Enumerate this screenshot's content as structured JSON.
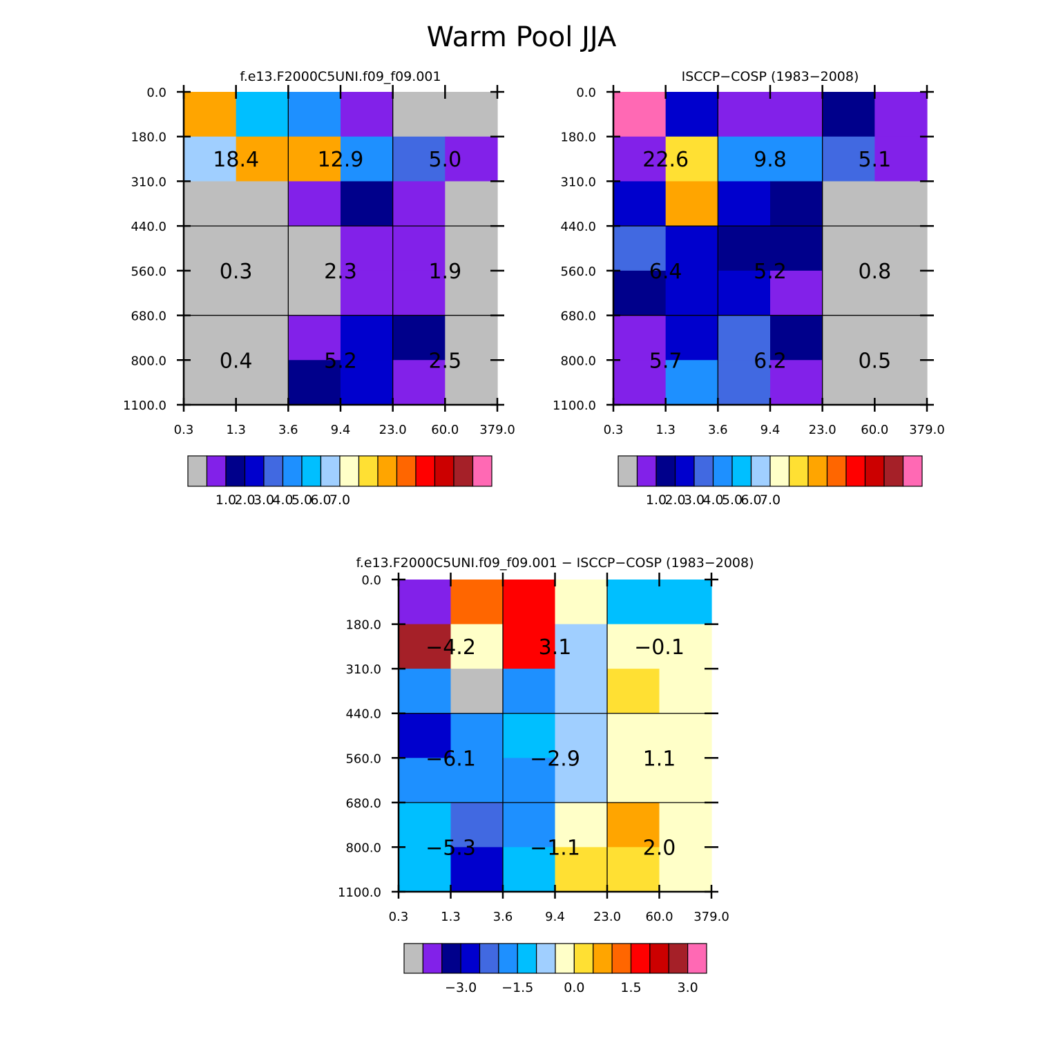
{
  "page_title": "Warm Pool JJA",
  "palette": {
    "gray": "#bebebe",
    "violet": "#8221e9",
    "navy": "#00008b",
    "blue": "#0000cd",
    "royal": "#4169e1",
    "dodger": "#1e90ff",
    "sky": "#00bfff",
    "light_blue": "#a0cfff",
    "cream": "#ffffc8",
    "gold": "#ffe033",
    "orange": "#ffa500",
    "dark_orange": "#ff6600",
    "red": "#ff0000",
    "dark_red": "#cc0000",
    "brown": "#a52028",
    "pink": "#ff69b4"
  },
  "colorbar_order": [
    "gray",
    "violet",
    "navy",
    "blue",
    "royal",
    "dodger",
    "sky",
    "light_blue",
    "cream",
    "gold",
    "orange",
    "dark_orange",
    "red",
    "dark_red",
    "brown",
    "pink"
  ],
  "chart_data": [
    {
      "type": "heatmap",
      "title": "f.e13.F2000C5UNI.f09_f09.001",
      "x_tick_labels": [
        "0.3",
        "1.3",
        "3.6",
        "9.4",
        "23.0",
        "60.0",
        "379.0"
      ],
      "y_tick_labels": [
        "0.0",
        "180.0",
        "310.0",
        "440.0",
        "560.0",
        "680.0",
        "800.0",
        "1100.0"
      ],
      "cells": [
        [
          "orange",
          "sky",
          "dodger",
          "violet",
          "gray",
          "gray"
        ],
        [
          "light_blue",
          "orange",
          "orange",
          "dodger",
          "royal",
          "violet"
        ],
        [
          "gray",
          "gray",
          "violet",
          "navy",
          "violet",
          "gray"
        ],
        [
          "gray",
          "gray",
          "gray",
          "violet",
          "violet",
          "gray"
        ],
        [
          "gray",
          "gray",
          "gray",
          "violet",
          "violet",
          "gray"
        ],
        [
          "gray",
          "gray",
          "violet",
          "blue",
          "navy",
          "gray"
        ],
        [
          "gray",
          "gray",
          "navy",
          "blue",
          "violet",
          "gray"
        ]
      ],
      "group_values": [
        [
          "18.4",
          "12.9",
          "5.0"
        ],
        [
          "0.3",
          "2.3",
          "1.9"
        ],
        [
          "0.4",
          "5.2",
          "2.5"
        ]
      ],
      "colorbar_labels": [
        "1.0",
        "2.0",
        "3.0",
        "4.0",
        "5.0",
        "6.0",
        "7.0"
      ]
    },
    {
      "type": "heatmap",
      "title": "ISCCP-COSP (1983-2008)",
      "x_tick_labels": [
        "0.3",
        "1.3",
        "3.6",
        "9.4",
        "23.0",
        "60.0",
        "379.0"
      ],
      "y_tick_labels": [
        "0.0",
        "180.0",
        "310.0",
        "440.0",
        "560.0",
        "680.0",
        "800.0",
        "1100.0"
      ],
      "cells": [
        [
          "pink",
          "blue",
          "violet",
          "violet",
          "navy",
          "violet"
        ],
        [
          "violet",
          "gold",
          "dodger",
          "dodger",
          "royal",
          "violet"
        ],
        [
          "blue",
          "orange",
          "blue",
          "navy",
          "gray",
          "gray"
        ],
        [
          "royal",
          "blue",
          "navy",
          "navy",
          "gray",
          "gray"
        ],
        [
          "navy",
          "blue",
          "blue",
          "violet",
          "gray",
          "gray"
        ],
        [
          "violet",
          "blue",
          "royal",
          "navy",
          "gray",
          "gray"
        ],
        [
          "violet",
          "dodger",
          "royal",
          "violet",
          "gray",
          "gray"
        ]
      ],
      "group_values": [
        [
          "22.6",
          "9.8",
          "5.1"
        ],
        [
          "6.4",
          "5.2",
          "0.8"
        ],
        [
          "5.7",
          "6.2",
          "0.5"
        ]
      ],
      "colorbar_labels": [
        "1.0",
        "2.0",
        "3.0",
        "4.0",
        "5.0",
        "6.0",
        "7.0"
      ]
    },
    {
      "type": "heatmap",
      "title": "f.e13.F2000C5UNI.f09_f09.001 - ISCCP-COSP (1983-2008)",
      "x_tick_labels": [
        "0.3",
        "1.3",
        "3.6",
        "9.4",
        "23.0",
        "60.0",
        "379.0"
      ],
      "y_tick_labels": [
        "0.0",
        "180.0",
        "310.0",
        "440.0",
        "560.0",
        "680.0",
        "800.0",
        "1100.0"
      ],
      "cells": [
        [
          "violet",
          "dark_orange",
          "red",
          "cream",
          "sky",
          "sky"
        ],
        [
          "brown",
          "cream",
          "red",
          "light_blue",
          "cream",
          "cream"
        ],
        [
          "dodger",
          "gray",
          "dodger",
          "light_blue",
          "gold",
          "cream"
        ],
        [
          "blue",
          "dodger",
          "sky",
          "light_blue",
          "cream",
          "cream"
        ],
        [
          "dodger",
          "dodger",
          "dodger",
          "light_blue",
          "cream",
          "cream"
        ],
        [
          "sky",
          "royal",
          "dodger",
          "cream",
          "orange",
          "cream"
        ],
        [
          "sky",
          "blue",
          "sky",
          "gold",
          "gold",
          "cream"
        ]
      ],
      "group_values": [
        [
          "-4.2",
          "3.1",
          "-0.1"
        ],
        [
          "-6.1",
          "-2.9",
          "1.1"
        ],
        [
          "-5.3",
          "-1.1",
          "2.0"
        ]
      ],
      "colorbar_labels": [
        "-3.0",
        "-1.5",
        "0.0",
        "1.5",
        "3.0"
      ]
    }
  ]
}
